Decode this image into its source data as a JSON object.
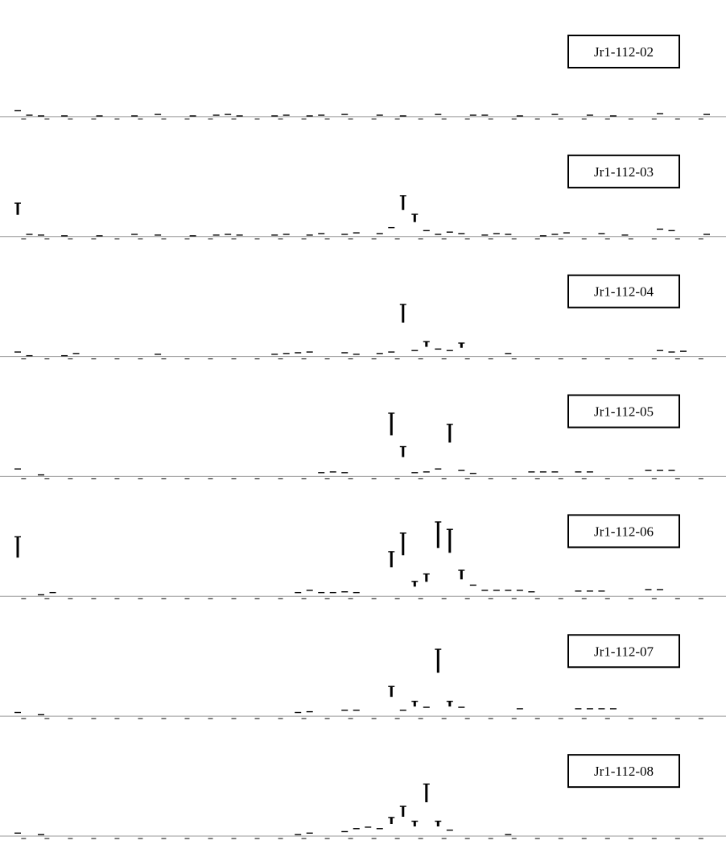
{
  "chart_data": [
    {
      "type": "line",
      "title": "",
      "xlabel": "",
      "ylabel": "",
      "sample_label": "Jr1-112-02",
      "grid": false,
      "legend": "none",
      "series": [
        {
          "values": [
            0.08,
            0.02,
            0.01,
            0.0,
            0.01,
            0.0,
            0.0,
            0.01,
            0.0,
            0.0,
            0.01,
            0.0,
            0.03,
            0.0,
            0.0,
            0.01,
            0.0,
            0.02,
            0.03,
            0.01,
            0.0,
            0.0,
            0.01,
            0.02,
            0.0,
            0.01,
            0.02,
            0.0,
            0.03,
            0.0,
            0.0,
            0.02,
            0.0,
            0.01,
            0.0,
            0.0,
            0.03,
            0.0,
            0.0,
            0.02,
            0.02,
            0.0,
            0.0,
            0.01,
            0.0,
            0.0,
            0.03,
            0.0,
            0.0,
            0.02,
            0.0,
            0.01,
            0.0,
            0.0,
            0.0,
            0.04,
            0.0,
            0.0,
            0.0,
            0.03
          ]
        }
      ]
    },
    {
      "type": "line",
      "title": "",
      "xlabel": "",
      "ylabel": "",
      "sample_label": "Jr1-112-03",
      "grid": false,
      "legend": "none",
      "series": [
        {
          "values": [
            0.45,
            0.03,
            0.02,
            0.0,
            0.01,
            0.0,
            0.0,
            0.01,
            0.0,
            0.0,
            0.03,
            0.0,
            0.02,
            0.0,
            0.0,
            0.01,
            0.0,
            0.02,
            0.03,
            0.02,
            0.0,
            0.0,
            0.02,
            0.03,
            0.0,
            0.02,
            0.04,
            0.0,
            0.03,
            0.05,
            0.0,
            0.04,
            0.12,
            0.55,
            0.3,
            0.08,
            0.03,
            0.06,
            0.04,
            0.0,
            0.02,
            0.04,
            0.03,
            0.0,
            0.0,
            0.01,
            0.03,
            0.05,
            0.0,
            0.0,
            0.04,
            0.0,
            0.02,
            0.0,
            0.0,
            0.1,
            0.08,
            0.0,
            0.0,
            0.03
          ]
        }
      ]
    },
    {
      "type": "line",
      "title": "",
      "xlabel": "",
      "ylabel": "",
      "sample_label": "Jr1-112-04",
      "grid": false,
      "legend": "none",
      "series": [
        {
          "values": [
            0.06,
            0.01,
            0.0,
            0.0,
            0.01,
            0.04,
            0.0,
            0.0,
            0.0,
            0.0,
            0.0,
            0.0,
            0.03,
            0.0,
            0.0,
            0.0,
            0.0,
            0.0,
            0.0,
            0.0,
            0.0,
            0.0,
            0.03,
            0.04,
            0.05,
            0.06,
            0.0,
            0.0,
            0.05,
            0.03,
            0.0,
            0.04,
            0.06,
            0.7,
            0.08,
            0.2,
            0.1,
            0.08,
            0.18,
            0.0,
            0.0,
            0.0,
            0.04,
            0.0,
            0.0,
            0.0,
            0.0,
            0.0,
            0.0,
            0.0,
            0.0,
            0.0,
            0.0,
            0.0,
            0.0,
            0.08,
            0.06,
            0.07,
            0.0,
            0.0
          ]
        }
      ]
    },
    {
      "type": "line",
      "title": "",
      "xlabel": "",
      "ylabel": "",
      "sample_label": "Jr1-112-05",
      "grid": false,
      "legend": "none",
      "series": [
        {
          "values": [
            0.1,
            0.0,
            0.02,
            0.0,
            0.0,
            0.0,
            0.0,
            0.0,
            0.0,
            0.0,
            0.0,
            0.0,
            0.0,
            0.0,
            0.0,
            0.0,
            0.0,
            0.0,
            0.0,
            0.0,
            0.0,
            0.0,
            0.0,
            0.0,
            0.0,
            0.0,
            0.05,
            0.06,
            0.05,
            0.0,
            0.0,
            0.0,
            0.85,
            0.4,
            0.05,
            0.06,
            0.1,
            0.7,
            0.08,
            0.04,
            0.0,
            0.0,
            0.0,
            0.0,
            0.06,
            0.06,
            0.06,
            0.0,
            0.06,
            0.06,
            0.0,
            0.0,
            0.0,
            0.0,
            0.08,
            0.08,
            0.08,
            0.0,
            0.0,
            0.0
          ]
        }
      ]
    },
    {
      "type": "line",
      "title": "",
      "xlabel": "",
      "ylabel": "",
      "sample_label": "Jr1-112-06",
      "grid": false,
      "legend": "none",
      "series": [
        {
          "values": [
            0.8,
            0.0,
            0.02,
            0.05,
            0.0,
            0.0,
            0.0,
            0.0,
            0.0,
            0.0,
            0.0,
            0.0,
            0.0,
            0.0,
            0.0,
            0.0,
            0.0,
            0.0,
            0.0,
            0.0,
            0.0,
            0.0,
            0.0,
            0.0,
            0.05,
            0.08,
            0.05,
            0.05,
            0.06,
            0.05,
            0.0,
            0.0,
            0.6,
            0.85,
            0.2,
            0.3,
            1.0,
            0.9,
            0.35,
            0.15,
            0.08,
            0.08,
            0.08,
            0.08,
            0.06,
            0.0,
            0.0,
            0.0,
            0.07,
            0.07,
            0.07,
            0.0,
            0.0,
            0.0,
            0.09,
            0.09,
            0.0,
            0.0,
            0.0,
            0.0
          ]
        }
      ]
    },
    {
      "type": "line",
      "title": "",
      "xlabel": "",
      "ylabel": "",
      "sample_label": "Jr1-112-07",
      "grid": false,
      "legend": "none",
      "series": [
        {
          "values": [
            0.05,
            0.0,
            0.02,
            0.0,
            0.0,
            0.0,
            0.0,
            0.0,
            0.0,
            0.0,
            0.0,
            0.0,
            0.0,
            0.0,
            0.0,
            0.0,
            0.0,
            0.0,
            0.0,
            0.0,
            0.0,
            0.0,
            0.0,
            0.0,
            0.05,
            0.06,
            0.0,
            0.0,
            0.08,
            0.08,
            0.0,
            0.0,
            0.4,
            0.08,
            0.2,
            0.12,
            0.9,
            0.2,
            0.12,
            0.0,
            0.0,
            0.0,
            0.0,
            0.1,
            0.0,
            0.0,
            0.0,
            0.0,
            0.1,
            0.1,
            0.1,
            0.1,
            0.0,
            0.0,
            0.0,
            0.0,
            0.0,
            0.0,
            0.0,
            0.0
          ]
        }
      ]
    },
    {
      "type": "line",
      "title": "",
      "xlabel": "",
      "ylabel": "",
      "sample_label": "Jr1-112-08",
      "grid": false,
      "legend": "none",
      "series": [
        {
          "values": [
            0.04,
            0.0,
            0.02,
            0.0,
            0.0,
            0.0,
            0.0,
            0.0,
            0.0,
            0.0,
            0.0,
            0.0,
            0.0,
            0.0,
            0.0,
            0.0,
            0.0,
            0.0,
            0.0,
            0.0,
            0.0,
            0.0,
            0.0,
            0.0,
            0.02,
            0.04,
            0.0,
            0.0,
            0.06,
            0.1,
            0.12,
            0.1,
            0.25,
            0.4,
            0.2,
            0.7,
            0.2,
            0.08,
            0.0,
            0.0,
            0.0,
            0.0,
            0.02,
            0.0,
            0.0,
            0.0,
            0.0,
            0.0,
            0.0,
            0.0,
            0.0,
            0.0,
            0.0,
            0.0,
            0.0,
            0.0,
            0.0,
            0.0,
            0.0,
            0.0
          ]
        }
      ]
    }
  ]
}
